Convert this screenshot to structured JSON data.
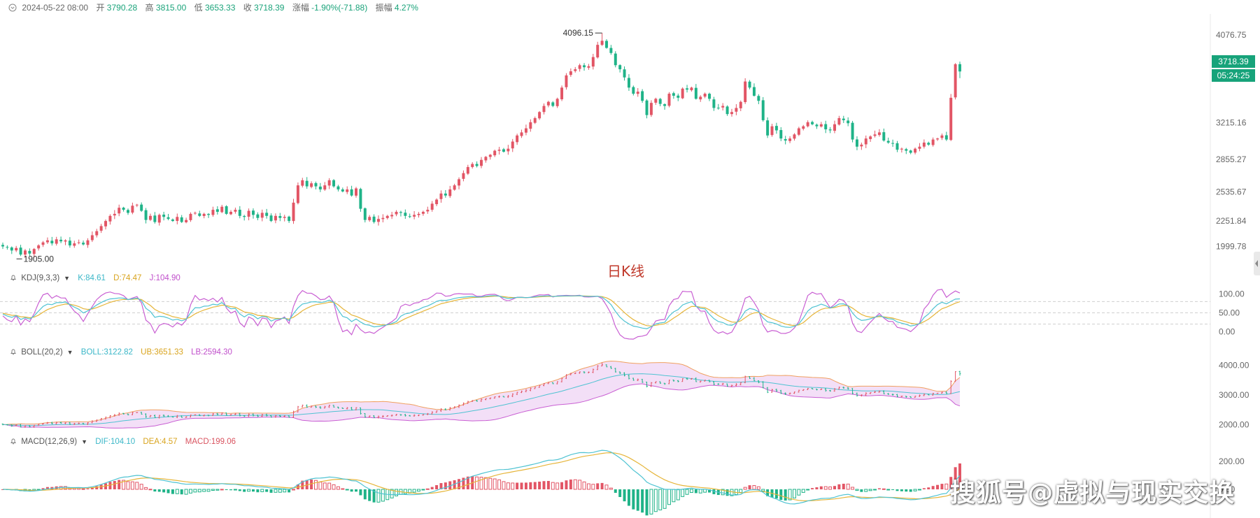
{
  "header": {
    "date": "2024-05-22 08:00",
    "open_label": "开",
    "open": "3790.28",
    "high_label": "高",
    "high": "3815.00",
    "low_label": "低",
    "low": "3653.33",
    "close_label": "收",
    "close": "3718.39",
    "change_label": "涨幅",
    "change": "-1.90%(-71.88)",
    "amp_label": "振幅",
    "amp": "4.27%"
  },
  "chart_title": "日K线",
  "watermark": "搜狐号@虚拟与现实交换",
  "price_tag": "3718.39",
  "countdown": "05:24:25",
  "colors": {
    "up": "#e25565",
    "down": "#1fb388",
    "k": "#4fc3d2",
    "d": "#e6b53a",
    "j": "#c95fd3",
    "boll_mid": "#4fc3d2",
    "boll_ub": "#f0a060",
    "boll_lb": "#c95fd3",
    "dif": "#4fc3d2",
    "dea": "#e6b53a"
  },
  "chart_data": [
    {
      "type": "candlestick",
      "name": "日K线",
      "yticks": [
        "4076.75",
        "3215.16",
        "2855.27",
        "2535.67",
        "2251.84",
        "1999.78"
      ],
      "ylim": [
        1880,
        4180
      ],
      "high_marker": "4096.15",
      "low_marker": "1905.00",
      "close_series": [
        2000,
        1990,
        1960,
        1985,
        1920,
        1960,
        1930,
        1975,
        2010,
        2040,
        2060,
        2030,
        2070,
        2050,
        2060,
        2010,
        2030,
        2040,
        2020,
        2060,
        2110,
        2150,
        2200,
        2250,
        2300,
        2320,
        2380,
        2360,
        2330,
        2400,
        2410,
        2350,
        2260,
        2300,
        2240,
        2310,
        2290,
        2270,
        2250,
        2290,
        2240,
        2260,
        2320,
        2330,
        2300,
        2320,
        2310,
        2360,
        2340,
        2390,
        2320,
        2340,
        2360,
        2300,
        2290,
        2350,
        2310,
        2280,
        2330,
        2300,
        2250,
        2300,
        2280,
        2290,
        2250,
        2430,
        2600,
        2650,
        2590,
        2620,
        2590,
        2560,
        2600,
        2650,
        2590,
        2560,
        2540,
        2560,
        2500,
        2570,
        2370,
        2260,
        2290,
        2240,
        2270,
        2280,
        2300,
        2310,
        2340,
        2330,
        2300,
        2290,
        2310,
        2320,
        2340,
        2360,
        2420,
        2460,
        2520,
        2500,
        2560,
        2600,
        2660,
        2720,
        2780,
        2810,
        2790,
        2850,
        2880,
        2900,
        2940,
        2950,
        2930,
        2960,
        3030,
        3090,
        3120,
        3160,
        3220,
        3260,
        3320,
        3380,
        3420,
        3380,
        3450,
        3560,
        3680,
        3720,
        3740,
        3780,
        3760,
        3770,
        3860,
        3980,
        4020,
        3950,
        3900,
        3780,
        3740,
        3660,
        3560,
        3500,
        3520,
        3430,
        3290,
        3410,
        3450,
        3400,
        3380,
        3500,
        3480,
        3460,
        3550,
        3540,
        3560,
        3450,
        3470,
        3500,
        3450,
        3360,
        3360,
        3380,
        3300,
        3320,
        3360,
        3420,
        3620,
        3560,
        3480,
        3430,
        3240,
        3090,
        3180,
        3140,
        3060,
        3040,
        3060,
        3100,
        3160,
        3180,
        3220,
        3200,
        3180,
        3200,
        3150,
        3140,
        3200,
        3260,
        3240,
        3210,
        3050,
        2980,
        3000,
        3060,
        3080,
        3100,
        3120,
        3040,
        3020,
        3010,
        2950,
        2960,
        2940,
        2920,
        2960,
        2980,
        3020,
        3000,
        3050,
        3060,
        3090,
        3050,
        3460,
        3790,
        3718.39
      ]
    },
    {
      "type": "line",
      "name": "KDJ(9,3,3)",
      "yticks": [
        "100.00",
        "50.00",
        "0.00"
      ],
      "ylim": [
        -20,
        120
      ],
      "legend": {
        "k": "K:84.61",
        "d": "D:74.47",
        "j": "J:104.90"
      }
    },
    {
      "type": "line",
      "name": "BOLL(20,2)",
      "yticks": [
        "4000.00",
        "3000.00",
        "2000.00"
      ],
      "ylim": [
        1700,
        4300
      ],
      "legend": {
        "mid": "BOLL:3122.82",
        "ub": "UB:3651.33",
        "lb": "LB:2594.30"
      }
    },
    {
      "type": "bar",
      "name": "MACD(12,26,9)",
      "yticks": [
        "200.00",
        "0.00"
      ],
      "ylim": [
        -180,
        300
      ],
      "legend": {
        "dif": "DIF:104.10",
        "dea": "DEA:4.57",
        "macd": "MACD:199.06"
      }
    }
  ]
}
